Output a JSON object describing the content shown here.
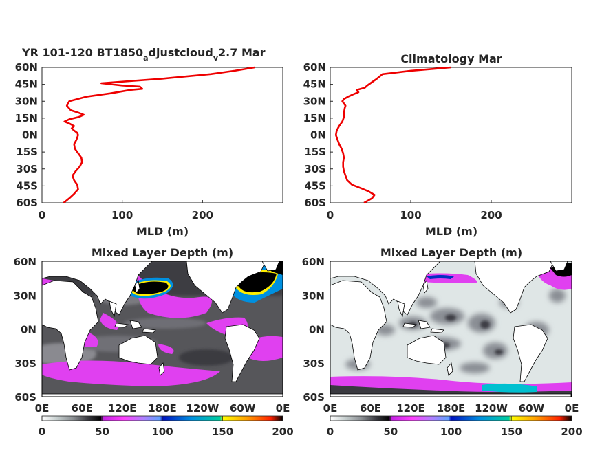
{
  "chart_data": [
    {
      "type": "line",
      "title_main": "YR 101-120 BT1850",
      "title_sub1": "a",
      "title_mid": "djustcloud",
      "title_sub2": "v",
      "title_end": "2.7 Mar",
      "xlabel": "MLD (m)",
      "xlim": [
        0,
        300
      ],
      "ylim": [
        -60,
        60
      ],
      "x_ticks": [
        "0",
        "100",
        "200"
      ],
      "x_tick_values": [
        0,
        100,
        200
      ],
      "y_ticks": [
        "60N",
        "45N",
        "30N",
        "15N",
        "0N",
        "15S",
        "30S",
        "45S",
        "60S"
      ],
      "y_tick_values": [
        60,
        45,
        30,
        15,
        0,
        -15,
        -30,
        -45,
        -60
      ],
      "series_color": "#ee0000",
      "series": [
        {
          "x": [
            27,
            34,
            40,
            45,
            44,
            40,
            38,
            42,
            47,
            50,
            49,
            45,
            41,
            40,
            43,
            45,
            44,
            40,
            37,
            40,
            35,
            28,
            34,
            46,
            52,
            45,
            36,
            31,
            34,
            55,
            85,
            110,
            125,
            122,
            100,
            74,
            150,
            210,
            240,
            265
          ],
          "y": [
            -60,
            -56,
            -52,
            -48,
            -44,
            -40,
            -36,
            -32,
            -28,
            -24,
            -20,
            -16,
            -12,
            -8,
            -4,
            0,
            2,
            4,
            6,
            8,
            10,
            12,
            14,
            16,
            18,
            20,
            22,
            26,
            30,
            34,
            37,
            40,
            41,
            43,
            44,
            46,
            50,
            54,
            57,
            60
          ]
        }
      ]
    },
    {
      "type": "line",
      "title": "Climatology Mar",
      "xlabel": "MLD (m)",
      "xlim": [
        0,
        300
      ],
      "ylim": [
        -60,
        60
      ],
      "x_ticks": [
        "0",
        "100",
        "200"
      ],
      "x_tick_values": [
        0,
        100,
        200
      ],
      "y_ticks": [
        "60N",
        "45N",
        "30N",
        "15N",
        "0N",
        "15S",
        "30S",
        "45S",
        "60S"
      ],
      "y_tick_values": [
        60,
        45,
        30,
        15,
        0,
        -15,
        -30,
        -45,
        -60
      ],
      "series_color": "#ee0000",
      "series": [
        {
          "x": [
            42,
            52,
            55,
            48,
            38,
            27,
            21,
            19,
            17,
            16,
            16,
            17,
            16,
            14,
            11,
            9,
            7,
            8,
            11,
            15,
            17,
            17,
            18,
            19,
            17,
            15,
            17,
            22,
            28,
            35,
            33,
            43,
            46,
            50,
            58,
            65,
            100,
            150
          ],
          "y": [
            -60,
            -56,
            -53,
            -50,
            -47,
            -44,
            -40,
            -36,
            -32,
            -28,
            -24,
            -20,
            -16,
            -12,
            -8,
            -4,
            0,
            4,
            8,
            12,
            16,
            20,
            24,
            26,
            28,
            30,
            32,
            34,
            36,
            38,
            40,
            42,
            44,
            46,
            50,
            54,
            57,
            60
          ]
        }
      ]
    },
    {
      "type": "heatmap",
      "title": "Mixed Layer Depth (m)",
      "x_ticks": [
        "0E",
        "60E",
        "120E",
        "180E",
        "120W",
        "60W",
        "0E"
      ],
      "y_ticks": [
        "60N",
        "30N",
        "0N",
        "30S",
        "60S"
      ],
      "colorbar_ticks": [
        "0",
        "50",
        "100",
        "150",
        "200"
      ],
      "colorbar_range": [
        0,
        200
      ]
    },
    {
      "type": "heatmap",
      "title": "Mixed Layer Depth (m)",
      "x_ticks": [
        "0E",
        "60E",
        "120E",
        "180E",
        "120W",
        "60W",
        "0E"
      ],
      "y_ticks": [
        "60N",
        "30N",
        "0N",
        "30S",
        "60S"
      ],
      "colorbar_ticks": [
        "0",
        "50",
        "100",
        "150",
        "200"
      ],
      "colorbar_range": [
        0,
        200
      ]
    }
  ],
  "colors": {
    "ocean_left": "#56565a",
    "ocean_right": "#dfe6e6",
    "land": "#ffffff",
    "magenta": "#e040f0",
    "axis": "#262626",
    "colormap": [
      "#ffffff",
      "#c8d0d0",
      "#8a8e92",
      "#3a3a40",
      "#000000",
      "#c020e0",
      "#ff40ff",
      "#b080ff",
      "#60a0ff",
      "#0010c0",
      "#00c0d0",
      "#40ff80",
      "#ffff00",
      "#ffa000",
      "#ff2000",
      "#000000"
    ]
  }
}
